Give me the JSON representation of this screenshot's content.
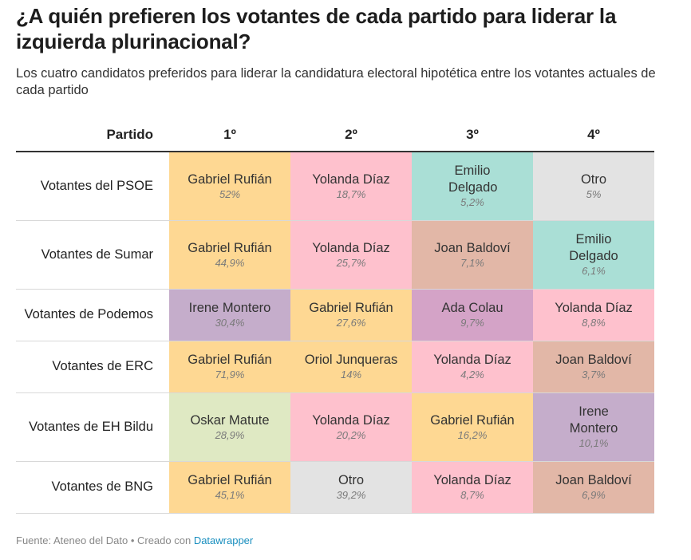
{
  "title": "¿A quién prefieren los votantes de cada partido para liderar la izquierda plurinacional?",
  "subtitle": "Los cuatro candidatos preferidos para liderar la candidatura electoral hipotética entre los votantes actuales de cada partido",
  "footer": {
    "prefix": "Fuente: Ateneo del Dato • Creado con ",
    "link": "Datawrapper"
  },
  "colors": {
    "Gabriel Rufián": "#fed893",
    "Yolanda Díaz": "#fec1cd",
    "Emilio Delgado": "#aadfd6",
    "Otro": "#e3e3e3",
    "Joan Baldoví": "#e2b7a7",
    "Irene Montero": "#c5adcb",
    "Ada Colau": "#d4a3c7",
    "Oriol Junqueras": "#fed893",
    "Oskar Matute": "#dfe9c3"
  },
  "chart_data": {
    "type": "table",
    "columns": [
      "Partido",
      "1º",
      "2º",
      "3º",
      "4º"
    ],
    "rows": [
      {
        "party": "Votantes del PSOE",
        "cells": [
          {
            "name": "Gabriel Rufián",
            "pct": "52%",
            "value": 52
          },
          {
            "name": "Yolanda Díaz",
            "pct": "18,7%",
            "value": 18.7
          },
          {
            "name": "Emilio Delgado",
            "pct": "5,2%",
            "value": 5.2
          },
          {
            "name": "Otro",
            "pct": "5%",
            "value": 5
          }
        ]
      },
      {
        "party": "Votantes de Sumar",
        "cells": [
          {
            "name": "Gabriel Rufián",
            "pct": "44,9%",
            "value": 44.9
          },
          {
            "name": "Yolanda Díaz",
            "pct": "25,7%",
            "value": 25.7
          },
          {
            "name": "Joan Baldoví",
            "pct": "7,1%",
            "value": 7.1
          },
          {
            "name": "Emilio Delgado",
            "pct": "6,1%",
            "value": 6.1
          }
        ]
      },
      {
        "party": "Votantes de Podemos",
        "cells": [
          {
            "name": "Irene Montero",
            "pct": "30,4%",
            "value": 30.4
          },
          {
            "name": "Gabriel Rufián",
            "pct": "27,6%",
            "value": 27.6
          },
          {
            "name": "Ada Colau",
            "pct": "9,7%",
            "value": 9.7
          },
          {
            "name": "Yolanda Díaz",
            "pct": "8,8%",
            "value": 8.8
          }
        ]
      },
      {
        "party": "Votantes de ERC",
        "cells": [
          {
            "name": "Gabriel Rufián",
            "pct": "71,9%",
            "value": 71.9
          },
          {
            "name": "Oriol Junqueras",
            "pct": "14%",
            "value": 14
          },
          {
            "name": "Yolanda Díaz",
            "pct": "4,2%",
            "value": 4.2
          },
          {
            "name": "Joan Baldoví",
            "pct": "3,7%",
            "value": 3.7
          }
        ]
      },
      {
        "party": "Votantes de EH Bildu",
        "cells": [
          {
            "name": "Oskar Matute",
            "pct": "28,9%",
            "value": 28.9
          },
          {
            "name": "Yolanda Díaz",
            "pct": "20,2%",
            "value": 20.2
          },
          {
            "name": "Gabriel Rufián",
            "pct": "16,2%",
            "value": 16.2
          },
          {
            "name": "Irene Montero",
            "pct": "10,1%",
            "value": 10.1
          }
        ]
      },
      {
        "party": "Votantes de BNG",
        "cells": [
          {
            "name": "Gabriel Rufián",
            "pct": "45,1%",
            "value": 45.1
          },
          {
            "name": "Otro",
            "pct": "39,2%",
            "value": 39.2
          },
          {
            "name": "Yolanda Díaz",
            "pct": "8,7%",
            "value": 8.7
          },
          {
            "name": "Joan Baldoví",
            "pct": "6,9%",
            "value": 6.9
          }
        ]
      }
    ]
  }
}
